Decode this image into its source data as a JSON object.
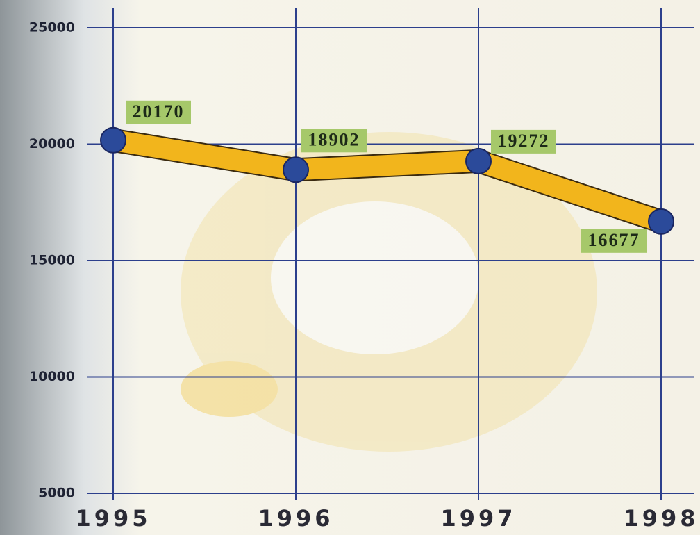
{
  "chart_data": {
    "type": "line",
    "categories": [
      "1995",
      "1996",
      "1997",
      "1998"
    ],
    "series": [
      {
        "values": [
          20170,
          18902,
          19272,
          16677
        ],
        "color": "#f2b51c",
        "outline": "#3a2a10",
        "marker_color": "#2b4a9a",
        "label_color": "#a6c86a"
      }
    ],
    "ylim": [
      5000,
      25000
    ],
    "yticks": [
      5000,
      10000,
      15000,
      20000,
      25000
    ],
    "grid": true,
    "grid_color": "#2c3f8c"
  }
}
